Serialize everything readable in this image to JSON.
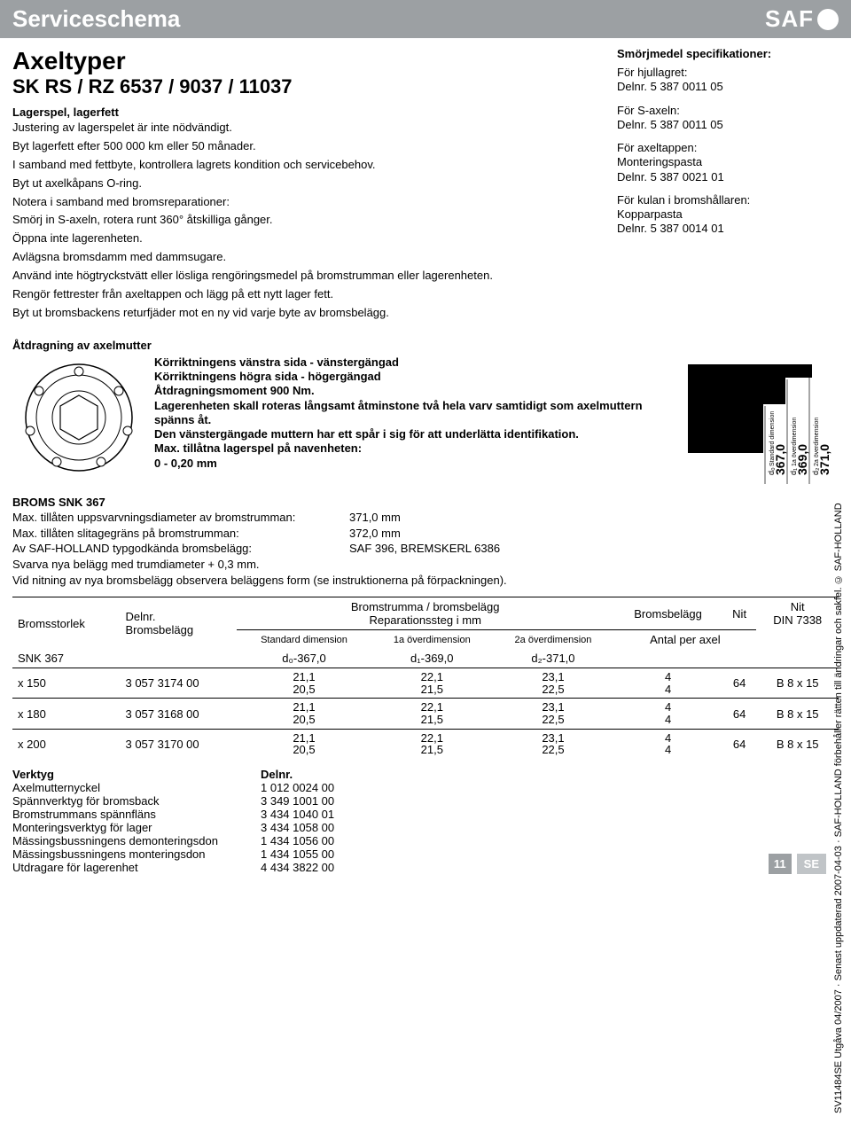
{
  "header": {
    "title": "Serviceschema",
    "logo": "SAF"
  },
  "main": {
    "h1": "Axeltyper",
    "h2": "SK RS / RZ 6537 / 9037 / 11037",
    "lead": "Lagerspel, lagerfett",
    "paras": [
      "Justering av lagerspelet är inte nödvändigt.",
      "Byt lagerfett efter 500 000 km eller 50 månader.",
      "I samband med fettbyte, kontrollera lagrets kondition och servicebehov.",
      "Byt ut axelkåpans O-ring.",
      "Notera i samband med bromsreparationer:",
      "Smörj in S-axeln, rotera runt 360° åtskilliga gånger.",
      "Öppna inte lagerenheten.",
      "Avlägsna bromsdamm med dammsugare.",
      "Använd inte högtryckstvätt eller lösliga rengöringsmedel på bromstrumman eller lagerenheten.",
      "Rengör fettrester från axeltappen och lägg på ett nytt lager fett.",
      "Byt ut bromsbackens returfjäder mot en ny vid varje byte av bromsbelägg."
    ]
  },
  "spec": {
    "heading": "Smörjmedel specifikationer:",
    "items": [
      {
        "t": "För hjullagret:",
        "v": "Delnr. 5 387 0011 05"
      },
      {
        "t": "För S-axeln:",
        "v": "Delnr. 5 387 0011 05"
      },
      {
        "t": "För axeltappen:",
        "v": "Monteringspasta",
        "v2": "Delnr. 5 387 0021 01"
      },
      {
        "t": "För kulan i bromshållaren:",
        "v": "Kopparpasta",
        "v2": "Delnr. 5 387 0014 01"
      }
    ]
  },
  "tighten": {
    "heading": "Åtdragning av axelmutter",
    "lines": [
      "Körriktningens vänstra sida - vänstergängad",
      "Körriktningens högra sida - högergängad",
      "Åtdragningsmoment 900 Nm.",
      "Lagerenheten skall roteras långsamt åtminstone två hela varv samtidigt som axelmuttern spänns åt.",
      "Den vänstergängade muttern har ett spår i sig för att underlätta identifikation.",
      "Max. tillåtna lagerspel på navenheten:",
      "0 - 0,20 mm"
    ]
  },
  "drumDims": {
    "labels": [
      {
        "sub": "d₀",
        "txt": "Standard dimension",
        "val": "367,0"
      },
      {
        "sub": "d₁",
        "txt": "1a överdimension",
        "val": "369,0"
      },
      {
        "sub": "d₂",
        "txt": "2a överdimension",
        "val": "371,0"
      }
    ]
  },
  "broms": {
    "heading": "BROMS SNK 367",
    "rows": [
      {
        "l": "Max. tillåten uppsvarvningsdiameter av bromstrumman:",
        "r": "371,0 mm"
      },
      {
        "l": "Max. tillåten slitagegräns på bromstrumman:",
        "r": "372,0 mm"
      },
      {
        "l": "Av SAF-HOLLAND typgodkända bromsbelägg:",
        "r": "SAF 396, BREMSKERL 6386"
      }
    ],
    "note1": "Svarva nya belägg med trumdiameter + 0,3 mm.",
    "note2": "Vid nitning av nya bromsbelägg observera beläggens form (se instruktionerna på förpackningen)."
  },
  "table": {
    "head": {
      "c1": "Bromsstorlek",
      "c2a": "Delnr.",
      "c2b": "Bromsbelägg",
      "c3a": "Bromstrumma / bromsbelägg",
      "c3b": "Reparationssteg i mm",
      "c4": "Bromsbelägg",
      "c5": "Nit",
      "c6a": "Nit",
      "c6b": "DIN 7338",
      "sub1": "Standard dimension",
      "sub2": "1a överdimension",
      "sub3": "2a överdimension",
      "ax": "Antal per axel"
    },
    "row0": {
      "name": "SNK 367",
      "d0": "d₀-367,0",
      "d1": "d₁-369,0",
      "d2": "d₂-371,0"
    },
    "rows": [
      {
        "size": "x 150",
        "part": "3 057 3174 00",
        "a1": "21,1",
        "a2": "20,5",
        "b1": "22,1",
        "b2": "21,5",
        "c1": "23,1",
        "c2": "22,5",
        "q1": "4",
        "q2": "4",
        "niv": "64",
        "din": "B 8 x 15"
      },
      {
        "size": "x 180",
        "part": "3 057 3168 00",
        "a1": "21,1",
        "a2": "20,5",
        "b1": "22,1",
        "b2": "21,5",
        "c1": "23,1",
        "c2": "22,5",
        "q1": "4",
        "q2": "4",
        "niv": "64",
        "din": "B 8 x 15"
      },
      {
        "size": "x 200",
        "part": "3 057 3170 00",
        "a1": "21,1",
        "a2": "20,5",
        "b1": "22,1",
        "b2": "21,5",
        "c1": "23,1",
        "c2": "22,5",
        "q1": "4",
        "q2": "4",
        "niv": "64",
        "din": "B 8 x 15"
      }
    ]
  },
  "tools": {
    "h1": "Verktyg",
    "h2": "Delnr.",
    "rows": [
      {
        "l": "Axelmutternyckel",
        "r": "1 012 0024 00"
      },
      {
        "l": "Spännverktyg för bromsback",
        "r": "3 349 1001 00"
      },
      {
        "l": "Bromstrummans spännfläns",
        "r": "3 434 1040 01"
      },
      {
        "l": "Monteringsverktyg för lager",
        "r": "3 434 1058 00"
      },
      {
        "l": "Mässingsbussningens demonteringsdon",
        "r": "1 434 1056 00"
      },
      {
        "l": "Mässingsbussningens monteringsdon",
        "r": "1 434 1055 00"
      },
      {
        "l": "Utdragare för lagerenhet",
        "r": "4 434 3822 00"
      }
    ]
  },
  "footer": {
    "side": "SV11484SE  Utgåva 04/2007 · Senast uppdaterad 2007-04-03 · SAF-HOLLAND förbehåller rätten till ändringar och sakfel. © SAF-HOLLAND",
    "page": "11",
    "lang": "SE"
  }
}
